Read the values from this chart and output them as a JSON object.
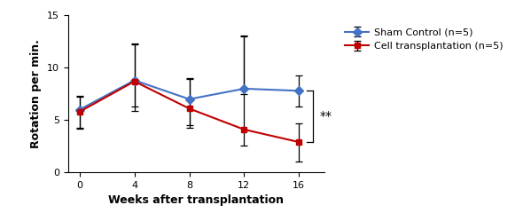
{
  "x": [
    0,
    4,
    8,
    12,
    16
  ],
  "sham_y": [
    6.0,
    8.8,
    7.0,
    8.0,
    7.8
  ],
  "sham_yerr_upper": [
    1.2,
    3.5,
    2.0,
    5.0,
    1.5
  ],
  "sham_yerr_lower": [
    1.8,
    2.5,
    2.5,
    0.5,
    1.5
  ],
  "cell_y": [
    5.8,
    8.7,
    6.1,
    4.1,
    2.9
  ],
  "cell_yerr_upper": [
    1.5,
    3.5,
    2.8,
    9.0,
    1.8
  ],
  "cell_yerr_lower": [
    1.5,
    2.8,
    1.8,
    1.5,
    1.9
  ],
  "sham_color": "#4472C4",
  "cell_color": "#C00000",
  "xlabel": "Weeks after transplantation",
  "ylabel": "Rotation per min.",
  "ylim": [
    0,
    15
  ],
  "yticks": [
    0,
    5,
    10,
    15
  ],
  "xticks": [
    0,
    4,
    8,
    12,
    16
  ],
  "legend_sham": "Sham Control (n=5)",
  "legend_cell": "Cell transplantation (n=5)",
  "significance": "**"
}
